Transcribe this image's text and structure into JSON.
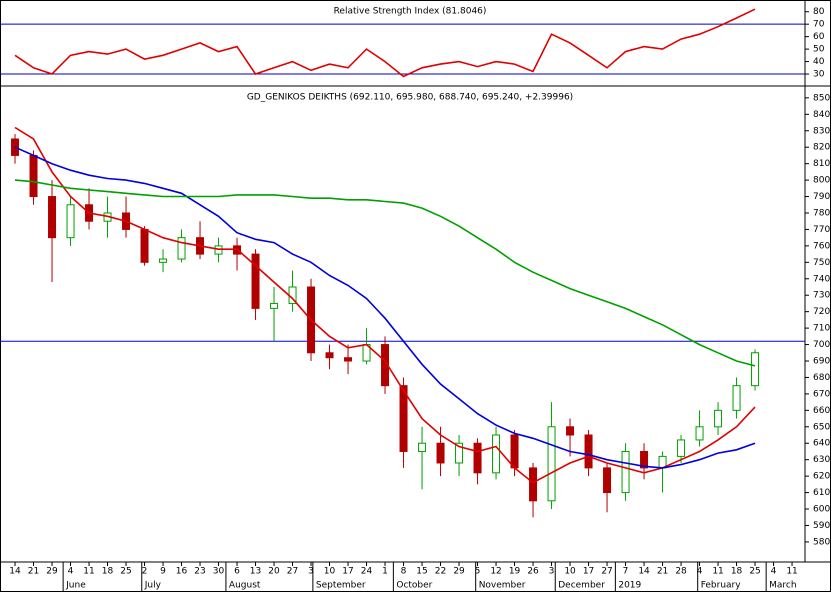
{
  "chart_data": [
    {
      "type": "line",
      "title": "Relative Strength Index (81.8046)",
      "x": [
        0,
        1,
        2,
        3,
        4,
        5,
        6,
        7,
        8,
        9,
        10,
        11,
        12,
        13,
        14,
        15,
        16,
        17,
        18,
        19,
        20,
        21,
        22,
        23,
        24,
        25,
        26,
        27,
        28,
        29,
        30,
        31,
        32,
        33,
        34,
        35,
        36,
        37,
        38,
        39,
        40
      ],
      "values": [
        45,
        35,
        30,
        45,
        48,
        46,
        50,
        42,
        45,
        50,
        55,
        48,
        52,
        30,
        35,
        40,
        33,
        38,
        35,
        50,
        40,
        28,
        35,
        38,
        40,
        36,
        40,
        38,
        32,
        62,
        55,
        45,
        35,
        48,
        52,
        50,
        58,
        62,
        68,
        75,
        82
      ],
      "color": "#e00000",
      "ylim": [
        22,
        87
      ],
      "yticks": [
        30,
        40,
        50,
        60,
        70,
        80
      ],
      "hlines": [
        70,
        30
      ],
      "hline_color": "#0000c0"
    },
    {
      "type": "candlestick",
      "title": "GD_GENIKOS DEIKTHS (692.110, 695.980, 688.740, 695.240, +2.39996)",
      "x": [
        0,
        1,
        2,
        3,
        4,
        5,
        6,
        7,
        8,
        9,
        10,
        11,
        12,
        13,
        14,
        15,
        16,
        17,
        18,
        19,
        20,
        21,
        22,
        23,
        24,
        25,
        26,
        27,
        28,
        29,
        30,
        31,
        32,
        33,
        34,
        35,
        36,
        37,
        38,
        39,
        40
      ],
      "open": [
        825,
        815,
        790,
        765,
        785,
        775,
        780,
        770,
        750,
        752,
        765,
        755,
        760,
        755,
        722,
        725,
        735,
        695,
        692,
        690,
        700,
        675,
        635,
        640,
        628,
        640,
        622,
        645,
        625,
        605,
        650,
        645,
        625,
        610,
        635,
        625,
        632,
        642,
        650,
        660,
        675
      ],
      "high": [
        828,
        818,
        800,
        790,
        795,
        790,
        790,
        772,
        758,
        770,
        775,
        765,
        765,
        758,
        735,
        745,
        740,
        700,
        700,
        710,
        705,
        680,
        650,
        650,
        645,
        643,
        650,
        648,
        628,
        665,
        655,
        648,
        628,
        640,
        640,
        635,
        645,
        660,
        665,
        680,
        697
      ],
      "low": [
        810,
        785,
        738,
        760,
        770,
        765,
        765,
        748,
        744,
        750,
        752,
        750,
        745,
        715,
        702,
        720,
        690,
        685,
        682,
        688,
        670,
        625,
        612,
        620,
        620,
        615,
        618,
        620,
        595,
        600,
        632,
        620,
        598,
        605,
        618,
        610,
        628,
        638,
        645,
        655,
        672
      ],
      "close": [
        815,
        790,
        765,
        785,
        775,
        780,
        770,
        750,
        752,
        765,
        755,
        760,
        755,
        722,
        725,
        735,
        695,
        692,
        690,
        700,
        675,
        635,
        640,
        628,
        640,
        622,
        645,
        625,
        605,
        650,
        645,
        625,
        610,
        635,
        625,
        632,
        642,
        650,
        660,
        675,
        695
      ],
      "up_color": "#00a000",
      "down_color": "#b00000",
      "overlays": [
        {
          "color": "#e00000",
          "values": [
            832,
            825,
            805,
            790,
            780,
            778,
            775,
            770,
            765,
            762,
            760,
            758,
            758,
            748,
            738,
            728,
            715,
            705,
            698,
            700,
            690,
            672,
            655,
            645,
            638,
            635,
            638,
            625,
            616,
            622,
            628,
            632,
            628,
            625,
            622,
            625,
            630,
            635,
            642,
            650,
            662
          ]
        },
        {
          "color": "#0000e0",
          "values": [
            820,
            815,
            810,
            806,
            803,
            801,
            800,
            798,
            795,
            792,
            785,
            778,
            768,
            764,
            762,
            755,
            750,
            742,
            736,
            728,
            716,
            702,
            688,
            676,
            667,
            658,
            651,
            646,
            643,
            639,
            635,
            633,
            630,
            628,
            626,
            625,
            627,
            630,
            634,
            636,
            640
          ]
        },
        {
          "color": "#00a000",
          "values": [
            800,
            799,
            797,
            795,
            794,
            793,
            792,
            791,
            790,
            790,
            790,
            790,
            791,
            791,
            791,
            790,
            789,
            789,
            788,
            788,
            787,
            786,
            783,
            778,
            772,
            765,
            758,
            750,
            744,
            739,
            734,
            730,
            726,
            722,
            717,
            712,
            706,
            700,
            695,
            690,
            687
          ]
        }
      ],
      "hlines": [
        702
      ],
      "hline_color": "#0000e0",
      "ylim": [
        569,
        856
      ],
      "yticks": [
        580,
        590,
        600,
        610,
        620,
        630,
        640,
        650,
        660,
        670,
        680,
        690,
        700,
        710,
        720,
        730,
        740,
        750,
        760,
        770,
        780,
        790,
        800,
        810,
        820,
        830,
        840,
        850
      ],
      "xlim": [
        -0.65,
        42.7
      ],
      "xticks": [
        {
          "value": 0,
          "label": "14"
        },
        {
          "value": 1,
          "label": "21"
        },
        {
          "value": 2,
          "label": "29"
        },
        {
          "value": 3,
          "label": "4"
        },
        {
          "value": 4,
          "label": "11"
        },
        {
          "value": 5,
          "label": "18"
        },
        {
          "value": 6,
          "label": "25"
        },
        {
          "value": 7,
          "label": "2"
        },
        {
          "value": 8,
          "label": "9"
        },
        {
          "value": 9,
          "label": "16"
        },
        {
          "value": 10,
          "label": "23"
        },
        {
          "value": 11,
          "label": "30"
        },
        {
          "value": 12,
          "label": "6"
        },
        {
          "value": 13,
          "label": "13"
        },
        {
          "value": 14,
          "label": "20"
        },
        {
          "value": 15,
          "label": "27"
        },
        {
          "value": 16,
          "label": "3"
        },
        {
          "value": 17,
          "label": "10"
        },
        {
          "value": 18,
          "label": "17"
        },
        {
          "value": 19,
          "label": "24"
        },
        {
          "value": 20,
          "label": "1"
        },
        {
          "value": 21,
          "label": "8"
        },
        {
          "value": 22,
          "label": "15"
        },
        {
          "value": 23,
          "label": "22"
        },
        {
          "value": 24,
          "label": "29"
        },
        {
          "value": 25,
          "label": "5"
        },
        {
          "value": 26,
          "label": "12"
        },
        {
          "value": 27,
          "label": "19"
        },
        {
          "value": 28,
          "label": "26"
        },
        {
          "value": 29,
          "label": "3"
        },
        {
          "value": 30,
          "label": "10"
        },
        {
          "value": 31,
          "label": "17"
        },
        {
          "value": 32,
          "label": "27"
        },
        {
          "value": 33,
          "label": "7"
        },
        {
          "value": 34,
          "label": "14"
        },
        {
          "value": 35,
          "label": "21"
        },
        {
          "value": 36,
          "label": "28"
        },
        {
          "value": 37,
          "label": "4"
        },
        {
          "value": 38,
          "label": "11"
        },
        {
          "value": 39,
          "label": "18"
        },
        {
          "value": 40,
          "label": "25"
        },
        {
          "value": 41,
          "label": "4"
        },
        {
          "value": 42,
          "label": "11"
        }
      ],
      "month_ticks": [
        {
          "value": 2.6,
          "label": "June"
        },
        {
          "value": 6.85,
          "label": "July"
        },
        {
          "value": 11.4,
          "label": "August"
        },
        {
          "value": 16.1,
          "label": "September"
        },
        {
          "value": 20.45,
          "label": "October"
        },
        {
          "value": 24.9,
          "label": "November"
        },
        {
          "value": 29.2,
          "label": "December"
        },
        {
          "value": 32.45,
          "label": "2019"
        },
        {
          "value": 36.9,
          "label": "February"
        },
        {
          "value": 40.6,
          "label": "March"
        }
      ]
    }
  ]
}
